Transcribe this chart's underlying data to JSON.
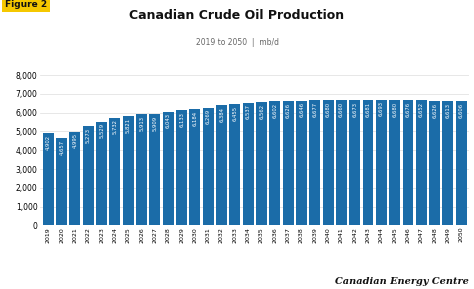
{
  "title": "Canadian Crude Oil Production",
  "subtitle": "2019 to 2050  |  mb/d",
  "figure_label": "Figure 2",
  "source": "Canadian Energy Centre",
  "bar_color": "#1b6ca8",
  "background_color": "#ffffff",
  "years": [
    2019,
    2020,
    2021,
    2022,
    2023,
    2024,
    2025,
    2026,
    2027,
    2028,
    2029,
    2030,
    2031,
    2032,
    2033,
    2034,
    2035,
    2036,
    2037,
    2038,
    2039,
    2040,
    2041,
    2042,
    2043,
    2044,
    2045,
    2046,
    2047,
    2048,
    2049,
    2050
  ],
  "values": [
    4902,
    4657,
    4995,
    5273,
    5529,
    5732,
    5821,
    5913,
    5909,
    6043,
    6133,
    6184,
    6269,
    6384,
    6455,
    6537,
    6562,
    6602,
    6626,
    6646,
    6677,
    6680,
    6660,
    6673,
    6681,
    6693,
    6680,
    6676,
    6652,
    6626,
    6613,
    6606
  ],
  "ylim": [
    0,
    8000
  ],
  "yticks": [
    0,
    1000,
    2000,
    3000,
    4000,
    5000,
    6000,
    7000,
    8000
  ],
  "value_labels": [
    "4,902",
    "4,657",
    "4,995",
    "5,273",
    "5,529",
    "5,732",
    "5,821",
    "5,913",
    "5,909",
    "6,043",
    "6,133",
    "6,184",
    "6,269",
    "6,384",
    "6,455",
    "6,537",
    "6,562",
    "6,602",
    "6,626",
    "6,646",
    "6,677",
    "6,680",
    "6,660",
    "6,673",
    "6,681",
    "6,693",
    "6,680",
    "6,676",
    "6,652",
    "6,626",
    "6,613",
    "6,606"
  ],
  "label_color": "#ffffff",
  "label_fontsize": 3.8,
  "title_fontsize": 9,
  "subtitle_fontsize": 5.5,
  "ytick_fontsize": 5.5,
  "xtick_fontsize": 4.5,
  "source_fontsize": 7,
  "fig_label_fontsize": 6.5,
  "fig_label_bg": "#f5c800",
  "bar_width": 0.82
}
